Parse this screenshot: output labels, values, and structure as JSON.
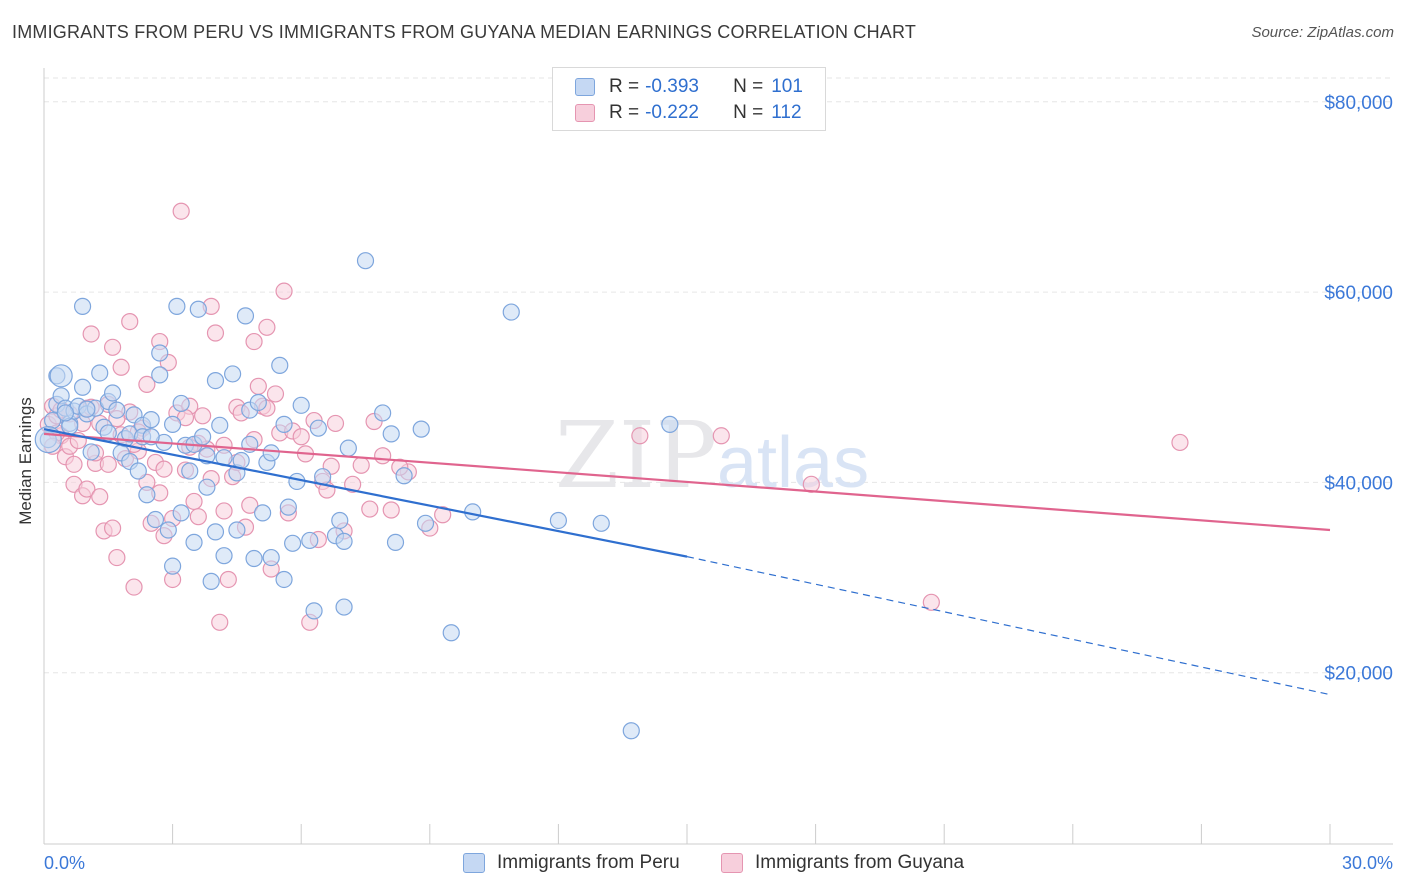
{
  "title": "IMMIGRANTS FROM PERU VS IMMIGRANTS FROM GUYANA MEDIAN EARNINGS CORRELATION CHART",
  "source": "Source: ZipAtlas.com",
  "watermark": {
    "zip": "ZIP",
    "atlas": "atlas"
  },
  "legend": {
    "r_label": "R =",
    "n_label": "N =",
    "peru": {
      "r": "-0.393",
      "n": "101"
    },
    "guyana": {
      "r": "-0.222",
      "n": "112"
    }
  },
  "bottom_legend": {
    "peru": "Immigrants from Peru",
    "guyana": "Immigrants from Guyana"
  },
  "colors": {
    "peru_fill": "#c5d8f3",
    "peru_stroke": "#7ea6dd",
    "peru_line": "#2f6fcf",
    "guyana_fill": "#f7cfdc",
    "guyana_stroke": "#e595b1",
    "guyana_line": "#e0648e",
    "axis_text": "#3b78d8"
  },
  "chart_data": {
    "type": "scatter",
    "title": "IMMIGRANTS FROM PERU VS IMMIGRANTS FROM GUYANA MEDIAN EARNINGS CORRELATION CHART",
    "xlabel": "",
    "ylabel": "Median Earnings",
    "xlim": [
      0,
      30
    ],
    "ylim": [
      2000,
      82500
    ],
    "x_tick_labels": [
      "0.0%",
      "30.0%"
    ],
    "y_ticks": [
      20000,
      40000,
      60000,
      80000
    ],
    "y_tick_labels": [
      "$20,000",
      "$40,000",
      "$60,000",
      "$80,000"
    ],
    "grid": true,
    "legend_position": "top-center",
    "series": [
      {
        "name": "Immigrants from Peru",
        "trend": {
          "x0": 0,
          "y0": 45600,
          "x1": 15,
          "y1": 32200,
          "x_dash_end": 30,
          "y_dash_end": 17700
        },
        "points": [
          [
            0.1,
            44500
          ],
          [
            0.2,
            46500
          ],
          [
            0.3,
            51200
          ],
          [
            0.3,
            48200
          ],
          [
            0.4,
            49100
          ],
          [
            0.5,
            47800
          ],
          [
            0.6,
            46200
          ],
          [
            0.6,
            45900
          ],
          [
            0.7,
            47500
          ],
          [
            0.8,
            48000
          ],
          [
            0.9,
            50000
          ],
          [
            0.9,
            58500
          ],
          [
            1.0,
            47200
          ],
          [
            1.1,
            43200
          ],
          [
            1.2,
            47800
          ],
          [
            1.3,
            51500
          ],
          [
            1.4,
            45800
          ],
          [
            1.5,
            48500
          ],
          [
            1.6,
            49400
          ],
          [
            1.7,
            47600
          ],
          [
            1.8,
            43100
          ],
          [
            1.9,
            44600
          ],
          [
            2.0,
            45100
          ],
          [
            2.0,
            42200
          ],
          [
            2.1,
            47100
          ],
          [
            2.2,
            41200
          ],
          [
            2.3,
            46000
          ],
          [
            2.3,
            44800
          ],
          [
            2.4,
            38700
          ],
          [
            2.5,
            46600
          ],
          [
            2.6,
            36100
          ],
          [
            2.7,
            53600
          ],
          [
            2.7,
            51300
          ],
          [
            2.8,
            44200
          ],
          [
            2.9,
            35000
          ],
          [
            3.0,
            46100
          ],
          [
            3.0,
            31200
          ],
          [
            3.1,
            58500
          ],
          [
            3.2,
            48300
          ],
          [
            3.2,
            36800
          ],
          [
            3.3,
            43900
          ],
          [
            3.4,
            41200
          ],
          [
            3.5,
            44000
          ],
          [
            3.5,
            33700
          ],
          [
            3.6,
            58200
          ],
          [
            3.7,
            44800
          ],
          [
            3.8,
            39500
          ],
          [
            3.9,
            29600
          ],
          [
            4.0,
            50700
          ],
          [
            4.0,
            34800
          ],
          [
            4.1,
            46000
          ],
          [
            4.2,
            42600
          ],
          [
            4.2,
            32300
          ],
          [
            4.4,
            51400
          ],
          [
            4.5,
            41000
          ],
          [
            4.5,
            35000
          ],
          [
            4.6,
            42300
          ],
          [
            4.7,
            57500
          ],
          [
            4.8,
            47600
          ],
          [
            4.9,
            32000
          ],
          [
            5.0,
            48400
          ],
          [
            5.1,
            36800
          ],
          [
            5.2,
            42100
          ],
          [
            5.3,
            43100
          ],
          [
            5.3,
            32100
          ],
          [
            5.5,
            52300
          ],
          [
            5.6,
            46100
          ],
          [
            5.6,
            29800
          ],
          [
            5.7,
            37400
          ],
          [
            5.8,
            33600
          ],
          [
            5.9,
            40100
          ],
          [
            6.0,
            48100
          ],
          [
            6.2,
            33900
          ],
          [
            6.3,
            26500
          ],
          [
            6.4,
            45700
          ],
          [
            6.5,
            40600
          ],
          [
            6.8,
            34400
          ],
          [
            6.9,
            36000
          ],
          [
            7.0,
            26900
          ],
          [
            7.0,
            33800
          ],
          [
            7.1,
            43600
          ],
          [
            7.5,
            63300
          ],
          [
            7.9,
            47300
          ],
          [
            8.1,
            45100
          ],
          [
            8.2,
            33700
          ],
          [
            8.4,
            40700
          ],
          [
            8.8,
            45600
          ],
          [
            8.9,
            35700
          ],
          [
            9.5,
            24200
          ],
          [
            10.0,
            36900
          ],
          [
            10.9,
            57900
          ],
          [
            12.0,
            36000
          ],
          [
            13.0,
            35700
          ],
          [
            13.7,
            13900
          ],
          [
            14.6,
            46100
          ],
          [
            0.5,
            47300
          ],
          [
            1.0,
            47700
          ],
          [
            1.5,
            45200
          ],
          [
            2.5,
            44800
          ],
          [
            3.8,
            42800
          ],
          [
            4.8,
            44000
          ]
        ]
      },
      {
        "name": "Immigrants from Guyana",
        "trend": {
          "x0": 0,
          "y0": 45100,
          "x1": 30,
          "y1": 35000
        },
        "points": [
          [
            0.1,
            46100
          ],
          [
            0.2,
            48000
          ],
          [
            0.3,
            47000
          ],
          [
            0.4,
            44900
          ],
          [
            0.5,
            42700
          ],
          [
            0.6,
            43800
          ],
          [
            0.7,
            39800
          ],
          [
            0.8,
            44400
          ],
          [
            0.9,
            38600
          ],
          [
            1.0,
            47800
          ],
          [
            1.1,
            55600
          ],
          [
            1.2,
            42000
          ],
          [
            1.3,
            46200
          ],
          [
            1.4,
            34900
          ],
          [
            1.5,
            48200
          ],
          [
            1.6,
            54200
          ],
          [
            1.7,
            32100
          ],
          [
            1.8,
            52100
          ],
          [
            1.9,
            42500
          ],
          [
            2.0,
            56900
          ],
          [
            2.1,
            29000
          ],
          [
            2.2,
            43300
          ],
          [
            2.3,
            45700
          ],
          [
            2.4,
            50300
          ],
          [
            2.5,
            35700
          ],
          [
            2.6,
            42100
          ],
          [
            2.7,
            54800
          ],
          [
            2.8,
            34400
          ],
          [
            2.9,
            52600
          ],
          [
            3.0,
            36200
          ],
          [
            3.0,
            29800
          ],
          [
            3.1,
            47300
          ],
          [
            3.2,
            68500
          ],
          [
            3.3,
            41300
          ],
          [
            3.4,
            48000
          ],
          [
            3.5,
            38000
          ],
          [
            3.6,
            36400
          ],
          [
            3.7,
            47000
          ],
          [
            3.8,
            43500
          ],
          [
            3.9,
            58500
          ],
          [
            4.0,
            55700
          ],
          [
            4.1,
            25300
          ],
          [
            4.2,
            37000
          ],
          [
            4.3,
            29800
          ],
          [
            4.4,
            40600
          ],
          [
            4.5,
            47900
          ],
          [
            4.6,
            47300
          ],
          [
            4.7,
            35300
          ],
          [
            4.8,
            37600
          ],
          [
            4.9,
            44500
          ],
          [
            5.0,
            50100
          ],
          [
            5.1,
            48000
          ],
          [
            5.2,
            47800
          ],
          [
            5.3,
            30900
          ],
          [
            5.4,
            49300
          ],
          [
            5.5,
            45200
          ],
          [
            5.6,
            60100
          ],
          [
            5.7,
            36800
          ],
          [
            5.8,
            45400
          ],
          [
            6.0,
            44800
          ],
          [
            6.1,
            43000
          ],
          [
            6.2,
            25300
          ],
          [
            6.3,
            46500
          ],
          [
            6.4,
            34000
          ],
          [
            6.5,
            40100
          ],
          [
            6.7,
            41700
          ],
          [
            6.8,
            46200
          ],
          [
            7.0,
            34900
          ],
          [
            7.2,
            39800
          ],
          [
            7.4,
            41800
          ],
          [
            7.6,
            37200
          ],
          [
            7.9,
            42800
          ],
          [
            8.1,
            37100
          ],
          [
            8.5,
            41100
          ],
          [
            9.0,
            35200
          ],
          [
            9.3,
            36600
          ],
          [
            13.9,
            44900
          ],
          [
            15.8,
            44900
          ],
          [
            17.9,
            39800
          ],
          [
            20.7,
            27400
          ],
          [
            26.5,
            44200
          ],
          [
            0.3,
            45200
          ],
          [
            0.6,
            47200
          ],
          [
            0.9,
            46200
          ],
          [
            1.2,
            43100
          ],
          [
            1.5,
            41900
          ],
          [
            1.8,
            45000
          ],
          [
            2.1,
            44000
          ],
          [
            2.4,
            40000
          ],
          [
            2.7,
            38900
          ],
          [
            3.3,
            46800
          ],
          [
            3.6,
            44100
          ],
          [
            3.9,
            40400
          ],
          [
            4.2,
            43900
          ],
          [
            4.5,
            42100
          ],
          [
            1.0,
            39300
          ],
          [
            0.7,
            41900
          ],
          [
            1.3,
            38500
          ],
          [
            2.0,
            47400
          ],
          [
            2.8,
            41400
          ],
          [
            3.4,
            43700
          ],
          [
            0.4,
            47600
          ],
          [
            1.1,
            47900
          ],
          [
            1.7,
            46700
          ],
          [
            2.2,
            45300
          ],
          [
            5.2,
            56300
          ],
          [
            4.9,
            54800
          ],
          [
            6.6,
            39200
          ],
          [
            7.7,
            46400
          ],
          [
            8.3,
            41600
          ],
          [
            1.6,
            35200
          ],
          [
            0.2,
            43800
          ]
        ]
      }
    ]
  }
}
